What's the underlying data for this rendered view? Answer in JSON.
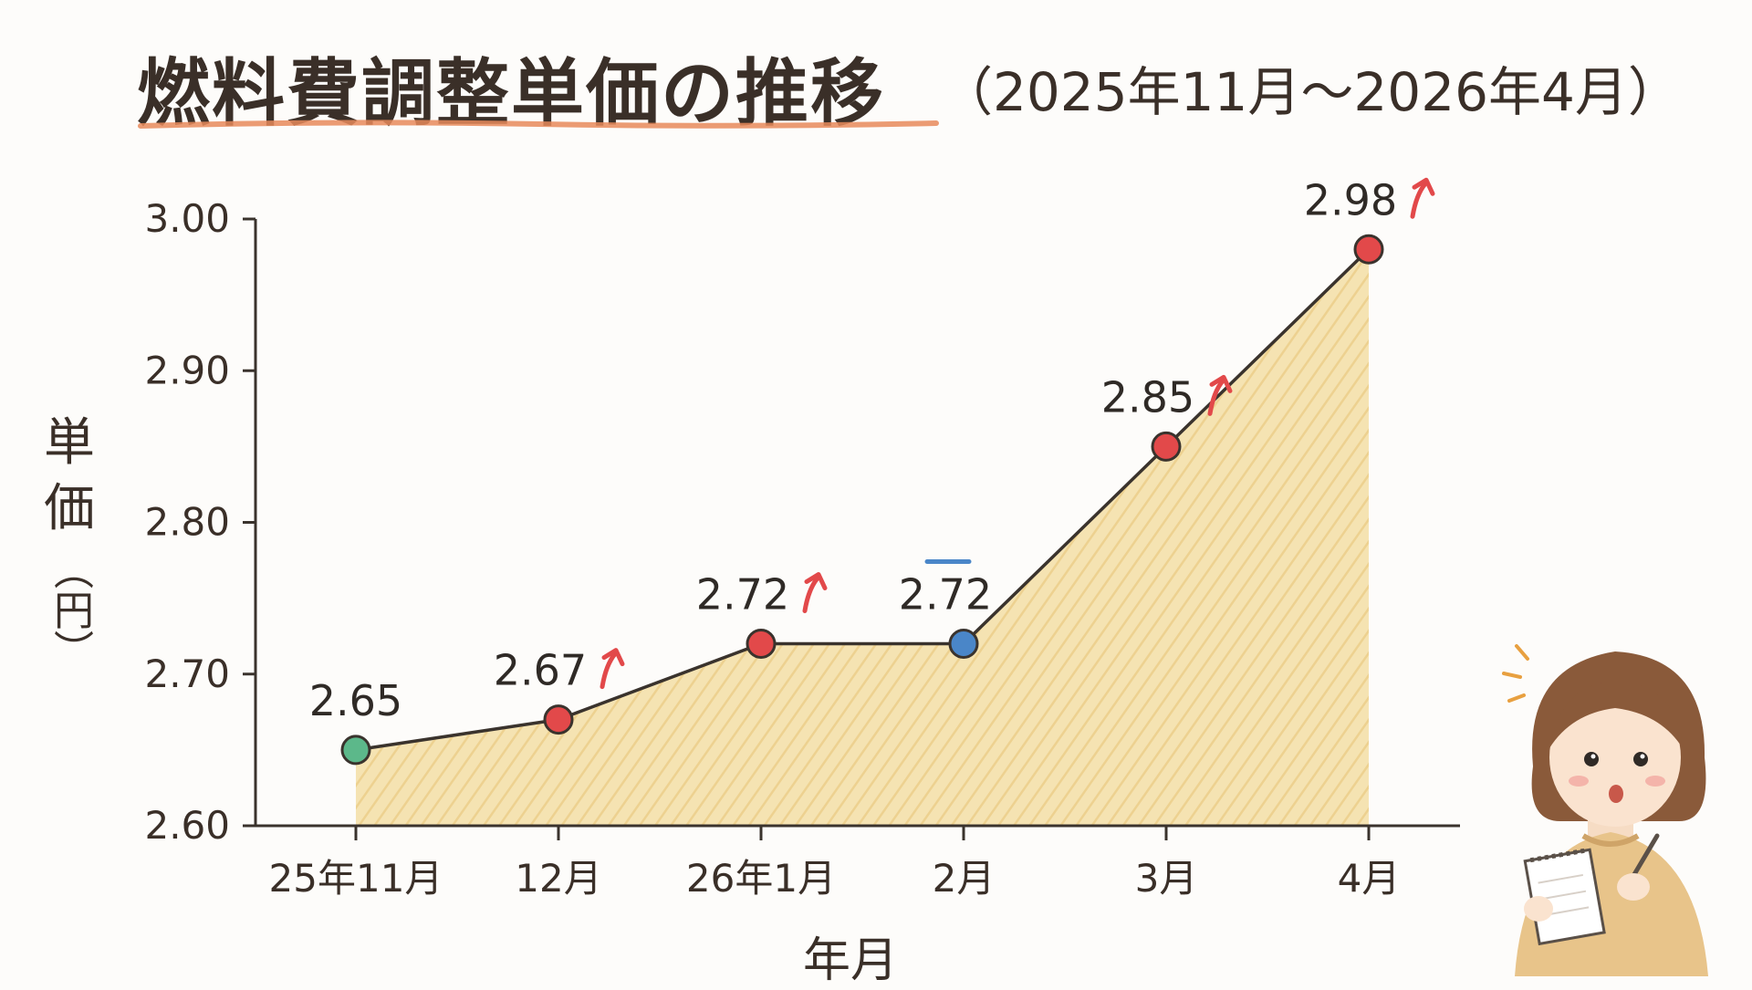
{
  "title": "燃料費調整単価の推移",
  "subtitle": "（2025年11月～2026年4月）",
  "colors": {
    "fill": "#f0d898",
    "line": "#3a332d",
    "up": "#e2494a",
    "flat": "#4a86c8",
    "start": "#5cb88a",
    "title_underline": "#e88a5a"
  },
  "chart_data": {
    "type": "area",
    "categories": [
      "25年11月",
      "12月",
      "26年1月",
      "2月",
      "3月",
      "4月"
    ],
    "values": [
      2.65,
      2.67,
      2.72,
      2.72,
      2.85,
      2.98
    ],
    "value_labels": [
      "2.65",
      "2.67",
      "2.72",
      "2.72",
      "2.85",
      "2.98"
    ],
    "trend": [
      "none",
      "up",
      "up",
      "flat",
      "up",
      "up"
    ],
    "xlabel": "年月",
    "ylabel": "単価",
    "ylabel_unit": "（円）",
    "ylim": [
      2.6,
      3.0
    ],
    "yticks": [
      2.6,
      2.7,
      2.8,
      2.9,
      3.0
    ],
    "ytick_labels": [
      "2.60",
      "2.70",
      "2.80",
      "2.90",
      "3.00"
    ],
    "grid": false,
    "legend": "none"
  }
}
